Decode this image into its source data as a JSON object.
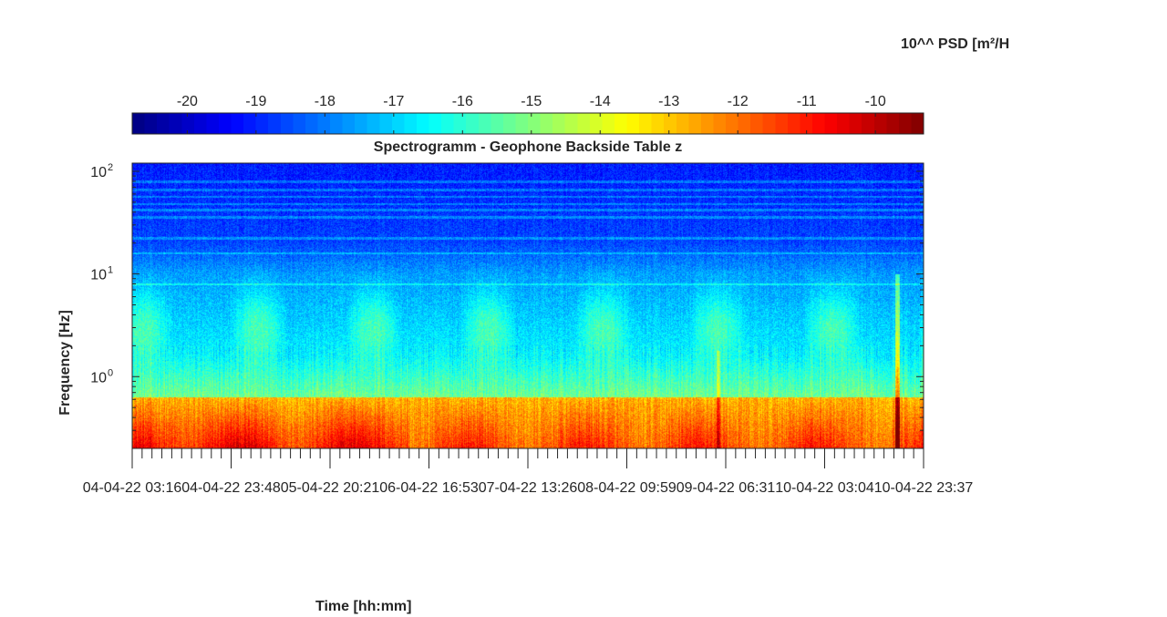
{
  "chart_data": {
    "type": "heatmap",
    "title": "Spectrogramm - Geophone Backside Table z",
    "xlabel": "Time [hh:mm]",
    "ylabel": "Frequency [Hz]",
    "y_scale": "log",
    "ylim": [
      0.2,
      120
    ],
    "y_tick_values": [
      1,
      10,
      100
    ],
    "y_tick_labels": [
      {
        "base": "10",
        "exp": "0"
      },
      {
        "base": "10",
        "exp": "1"
      },
      {
        "base": "10",
        "exp": "2"
      }
    ],
    "x_tick_labels": [
      "04-04-22 03:16",
      "04-04-22 23:48",
      "05-04-22 20:21",
      "06-04-22 16:53",
      "07-04-22 13:26",
      "08-04-22 09:59",
      "09-04-22 06:31",
      "10-04-22 03:04",
      "10-04-22 23:37"
    ],
    "colorbar": {
      "label": "10^^ PSD [m²/H",
      "colormap": "jet",
      "min": -20.8,
      "max": -9.3,
      "tick_values": [
        -20,
        -19,
        -18,
        -17,
        -16,
        -15,
        -14,
        -13,
        -12,
        -11,
        -10
      ],
      "tick_labels": [
        "-20",
        "-19",
        "-18",
        "-17",
        "-16",
        "-15",
        "-14",
        "-13",
        "-12",
        "-11",
        "-10"
      ],
      "position": "top"
    },
    "events": [
      {
        "time_fraction": 0.74,
        "description": "narrow broadband transient"
      },
      {
        "time_fraction": 0.967,
        "description": "strong broadband transient"
      }
    ]
  }
}
